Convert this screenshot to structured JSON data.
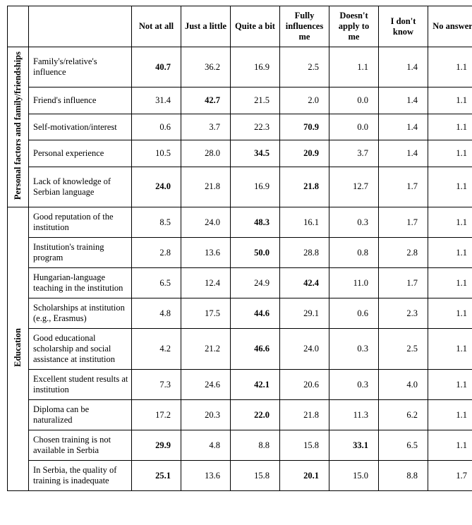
{
  "columns": [
    "Not at all",
    "Just a little",
    "Quite a bit",
    "Fully influences me",
    "Doesn't apply to me",
    "I don't know",
    "No answer"
  ],
  "categories": [
    {
      "name": "Personal factors and family/friendships"
    },
    {
      "name": "Education"
    }
  ],
  "rows_personal": [
    {
      "label": "Family's/relative's influence",
      "vals": [
        "40.7",
        "36.2",
        "16.9",
        "2.5",
        "1.1",
        "1.4",
        "1.1"
      ],
      "bold": [
        0
      ]
    },
    {
      "label": "Friend's influence",
      "vals": [
        "31.4",
        "42.7",
        "21.5",
        "2.0",
        "0.0",
        "1.4",
        "1.1"
      ],
      "bold": [
        1
      ]
    },
    {
      "label": "Self-motivation/interest",
      "vals": [
        "0.6",
        "3.7",
        "22.3",
        "70.9",
        "0.0",
        "1.4",
        "1.1"
      ],
      "bold": [
        3
      ]
    },
    {
      "label": "Personal experience",
      "vals": [
        "10.5",
        "28.0",
        "34.5",
        "20.9",
        "3.7",
        "1.4",
        "1.1"
      ],
      "bold": [
        2,
        3
      ]
    },
    {
      "label": "Lack of knowledge of Serbian language",
      "vals": [
        "24.0",
        "21.8",
        "16.9",
        "21.8",
        "12.7",
        "1.7",
        "1.1"
      ],
      "bold": [
        0,
        3
      ]
    }
  ],
  "rows_education": [
    {
      "label": "Good reputation of the institution",
      "vals": [
        "8.5",
        "24.0",
        "48.3",
        "16.1",
        "0.3",
        "1.7",
        "1.1"
      ],
      "bold": [
        2
      ]
    },
    {
      "label": "Institution's training program",
      "vals": [
        "2.8",
        "13.6",
        "50.0",
        "28.8",
        "0.8",
        "2.8",
        "1.1"
      ],
      "bold": [
        2
      ]
    },
    {
      "label": "Hungarian-language teaching in the institution",
      "vals": [
        "6.5",
        "12.4",
        "24.9",
        "42.4",
        "11.0",
        "1.7",
        "1.1"
      ],
      "bold": [
        3
      ]
    },
    {
      "label": "Scholarships at institution (e.g., Erasmus)",
      "vals": [
        "4.8",
        "17.5",
        "44.6",
        "29.1",
        "0.6",
        "2.3",
        "1.1"
      ],
      "bold": [
        2
      ]
    },
    {
      "label": "Good educational scholarship and social assistance at institution",
      "vals": [
        "4.2",
        "21.2",
        "46.6",
        "24.0",
        "0.3",
        "2.5",
        "1.1"
      ],
      "bold": [
        2
      ]
    },
    {
      "label": "Excellent student results at institution",
      "vals": [
        "7.3",
        "24.6",
        "42.1",
        "20.6",
        "0.3",
        "4.0",
        "1.1"
      ],
      "bold": [
        2
      ]
    },
    {
      "label": "Diploma can be naturalized",
      "vals": [
        "17.2",
        "20.3",
        "22.0",
        "21.8",
        "11.3",
        "6.2",
        "1.1"
      ],
      "bold": [
        2
      ]
    },
    {
      "label": "Chosen training is not available in Serbia",
      "vals": [
        "29.9",
        "4.8",
        "8.8",
        "15.8",
        "33.1",
        "6.5",
        "1.1"
      ],
      "bold": [
        0,
        4
      ]
    },
    {
      "label": "In Serbia, the quality of training is inadequate",
      "vals": [
        "25.1",
        "13.6",
        "15.8",
        "20.1",
        "15.0",
        "8.8",
        "1.7"
      ],
      "bold": [
        0,
        3
      ]
    }
  ]
}
